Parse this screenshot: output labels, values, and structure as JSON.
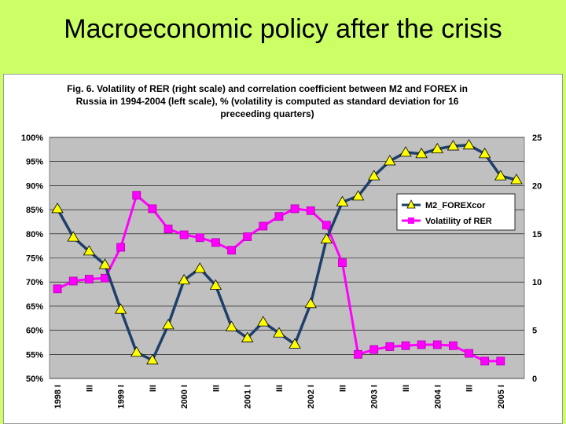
{
  "slide": {
    "title": "Macroeconomic policy after the crisis"
  },
  "colors": {
    "background": "#ccff66",
    "plot_area": "#c0c0c0",
    "m2_line": "#1f3f6b",
    "m2_marker": "#ffff00",
    "rer_line": "#ff00ff"
  },
  "chart_data": {
    "type": "line",
    "caption": [
      "Fig. 6. Volatility of RER (right scale) and correlation coefficient between M2 and FOREX in",
      "Russia in 1994-2004 (left scale), % (volatility is computed as standard deviation for 16",
      "preceeding quarters)"
    ],
    "x": [
      "1998 I",
      "",
      "III",
      "",
      "1999 I",
      "",
      "III",
      "",
      "2000 I",
      "",
      "III",
      "",
      "2001 I",
      "",
      "III",
      "",
      "2002 I",
      "",
      "III",
      "",
      "2003 I",
      "",
      "III",
      "",
      "2004 I",
      "",
      "III",
      "",
      "2005 I",
      ""
    ],
    "left_axis": {
      "range": [
        50,
        100
      ],
      "ticks": [
        "100%",
        "95%",
        "90%",
        "85%",
        "80%",
        "75%",
        "70%",
        "65%",
        "60%",
        "55%",
        "50%"
      ]
    },
    "right_axis": {
      "range": [
        0,
        25
      ],
      "ticks": [
        "25",
        "20",
        "15",
        "10",
        "5",
        "0"
      ]
    },
    "series": [
      {
        "name": "M2_FOREXcor",
        "axis": "left",
        "values": [
          85.2,
          79.3,
          76.4,
          73.6,
          64.3,
          55.4,
          53.8,
          61.1,
          70.4,
          72.8,
          69.3,
          60.7,
          58.4,
          61.7,
          59.4,
          57.1,
          65.5,
          78.9,
          86.6,
          87.8,
          92.0,
          95.1,
          96.9,
          96.6,
          97.6,
          98.2,
          98.4,
          96.6,
          92.0,
          91.2
        ]
      },
      {
        "name": "Volatility of RER",
        "axis": "right",
        "values": [
          9.3,
          10.1,
          10.3,
          10.4,
          13.6,
          19.0,
          17.6,
          15.5,
          14.9,
          14.6,
          14.1,
          13.3,
          14.7,
          15.8,
          16.8,
          17.6,
          17.4,
          15.9,
          12.0,
          2.5,
          3.0,
          3.3,
          3.4,
          3.5,
          3.5,
          3.4,
          2.6,
          1.8,
          1.8,
          null
        ]
      }
    ],
    "legend": {
      "position": "right-middle",
      "entries": [
        "M2_FOREXcor",
        "Volatility of RER"
      ]
    }
  }
}
